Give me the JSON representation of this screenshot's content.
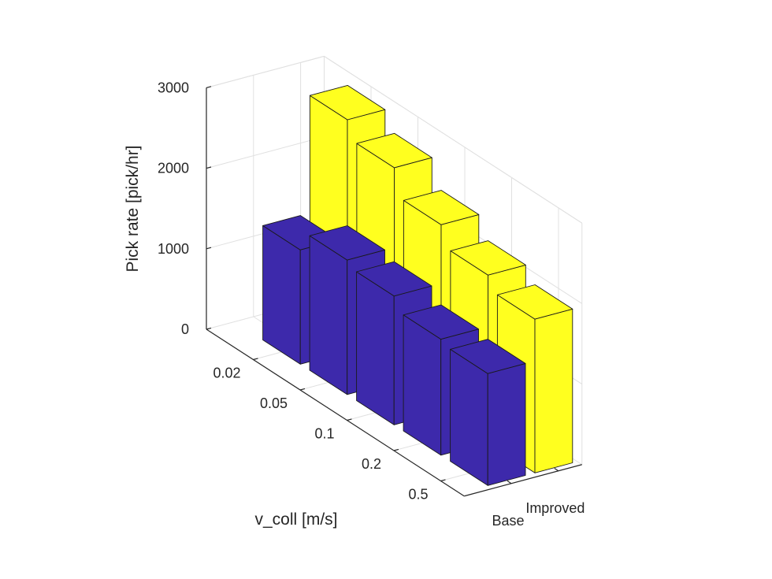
{
  "chart_data": {
    "type": "bar3",
    "title": "",
    "ylabel": "Pick rate [pick/hr]",
    "xlabel": "v_coll [m/s]",
    "zlim": [
      0,
      3000
    ],
    "z_ticks": [
      "0",
      "1000",
      "2000",
      "3000"
    ],
    "categories": [
      "0.02",
      "0.05",
      "0.1",
      "0.2",
      "0.5"
    ],
    "series": [
      {
        "name": "Base",
        "values": [
          1420,
          1670,
          1600,
          1440,
          1390
        ]
      },
      {
        "name": "Improved",
        "values": [
          2880,
          2660,
          2330,
          2080,
          1910
        ]
      }
    ],
    "colors": {
      "Base": "#3d29ab",
      "Improved": "#ffff1f"
    },
    "grid": true
  }
}
